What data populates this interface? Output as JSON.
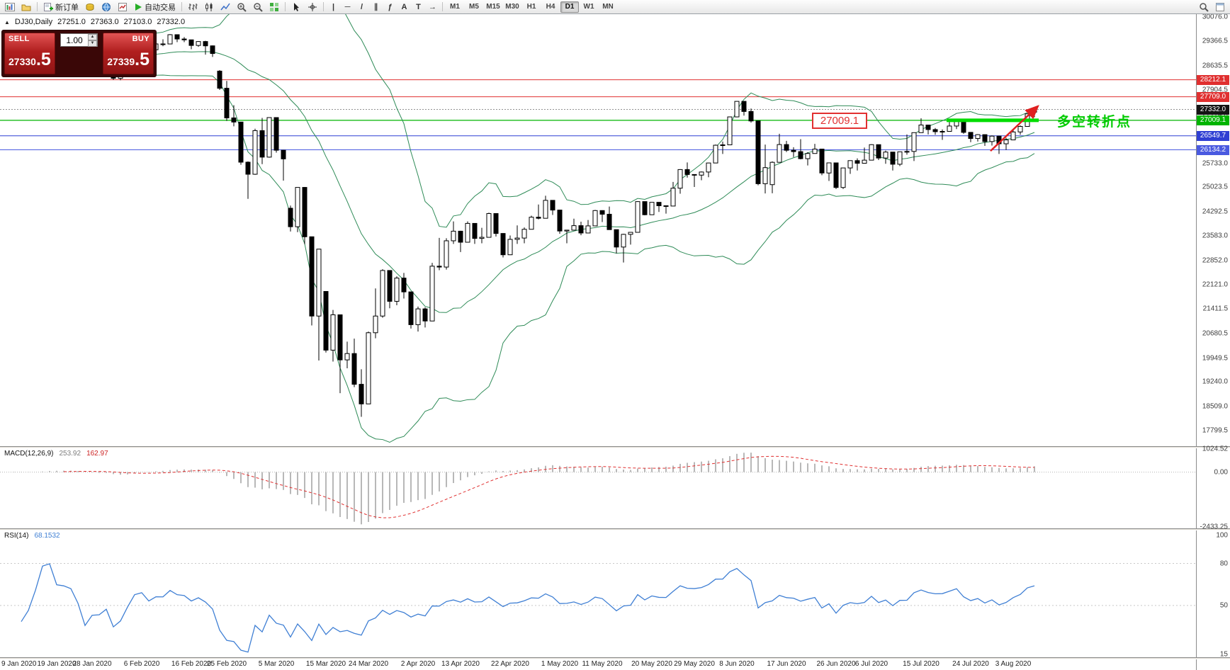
{
  "toolbar": {
    "new_order_label": "新订单",
    "autotrading_label": "自动交易",
    "timeframes": [
      "M1",
      "M5",
      "M15",
      "M30",
      "H1",
      "H4",
      "D1",
      "W1",
      "MN"
    ],
    "active_timeframe": "D1",
    "drawing_tools": [
      "|",
      "─",
      "/",
      "∥",
      "ƒ",
      "A",
      "T",
      "→"
    ]
  },
  "symbol_bar": {
    "toggle_icon": "▲",
    "symbol": "DJ30,Daily",
    "open": "27251.0",
    "high": "27363.0",
    "low": "27103.0",
    "close": "27332.0"
  },
  "trade_widget": {
    "sell_label": "SELL",
    "buy_label": "BUY",
    "volume": "1.00",
    "spin_up": "▲",
    "spin_down": "▼",
    "sell_price_main": "27330",
    "sell_price_pip": ".5",
    "buy_price_main": "27339",
    "buy_price_pip": ".5"
  },
  "annotations": {
    "level_callout": "27009.1",
    "turning_point": "多空转折点"
  },
  "indicator_titles": {
    "macd_label": "MACD(12,26,9)",
    "macd_main": "253.92",
    "macd_signal": "162.97",
    "rsi_label": "RSI(14)",
    "rsi_value": "68.1532"
  },
  "price_axis": {
    "ticks": [
      "30076.0",
      "29366.5",
      "28635.5",
      "27904.5",
      "27174.0",
      "26463.0",
      "25733.0",
      "25023.5",
      "24292.5",
      "23583.0",
      "22852.0",
      "22121.0",
      "21411.5",
      "20680.5",
      "19949.5",
      "19240.0",
      "18509.0",
      "17799.5"
    ],
    "badges": [
      {
        "value": "28212.1",
        "price": 28212.1,
        "color": "#e03030"
      },
      {
        "value": "27709.0",
        "price": 27709.0,
        "color": "#e03030"
      },
      {
        "value": "27332.0",
        "price": 27332.0,
        "color": "#141414"
      },
      {
        "value": "27009.1",
        "price": 27009.1,
        "color": "#00b400"
      },
      {
        "value": "26549.7",
        "price": 26549.7,
        "color": "#2f3fd3"
      },
      {
        "value": "26134.2",
        "price": 26134.2,
        "color": "#4a5ae0"
      }
    ]
  },
  "chart_data": {
    "type": "candlestick",
    "symbol": "DJ30",
    "timeframe": "Daily",
    "ylim": {
      "top": 30076.0,
      "bottom": 17799.5
    },
    "hlines": [
      {
        "price": 28212.1,
        "color": "#e03030",
        "width": 1,
        "style": "solid"
      },
      {
        "price": 27709.0,
        "color": "#e03030",
        "width": 1,
        "style": "solid"
      },
      {
        "price": 27332.0,
        "color": "#909090",
        "width": 1,
        "style": "dotted"
      },
      {
        "price": 27009.1,
        "color": "#00b400",
        "width": 1.2,
        "style": "solid"
      },
      {
        "price": 26549.7,
        "color": "#2f3fd3",
        "width": 1,
        "style": "solid"
      },
      {
        "price": 26134.2,
        "color": "#4a5ae0",
        "width": 1,
        "style": "solid"
      }
    ],
    "objects": {
      "thick_segment": {
        "price": 27009.1,
        "from_index": 133,
        "to_index": 145,
        "color": "#00dd00",
        "width": 5
      },
      "arrow": {
        "from": {
          "index": 139,
          "price": 26100
        },
        "to": {
          "index": 145,
          "price": 27430
        },
        "color": "#e02020"
      }
    },
    "indicators": {
      "bollinger": {
        "period": 20,
        "deviation": 2,
        "color": "#2e8b57"
      },
      "macd": {
        "fast": 12,
        "slow": 26,
        "signal": 9,
        "hist_color": "#b8b8b8",
        "signal_color": "#e03030",
        "ylim": {
          "max": 1024.52,
          "min": -2433.25
        },
        "axis_labels": [
          {
            "value": 1024.52,
            "label": "1024.52"
          },
          {
            "value": 0,
            "label": "0.00"
          },
          {
            "value": -2433.25,
            "label": "-2433.25"
          }
        ]
      },
      "rsi": {
        "period": 14,
        "color": "#3f7fd4",
        "ylim": {
          "max": 100,
          "min": 15
        },
        "levels": [
          80,
          50
        ],
        "axis_labels": [
          {
            "value": 100,
            "label": "100"
          },
          {
            "value": 80,
            "label": "80"
          },
          {
            "value": 50,
            "label": "50"
          },
          {
            "value": 15,
            "label": "15"
          }
        ]
      }
    },
    "date_labels": [
      {
        "label": "9 Jan 2020",
        "index": 0
      },
      {
        "label": "19 Jan 2020",
        "index": 7
      },
      {
        "label": "28 Jan 2020",
        "index": 12
      },
      {
        "label": "6 Feb 2020",
        "index": 19
      },
      {
        "label": "16 Feb 2020",
        "index": 26
      },
      {
        "label": "25 Feb 2020",
        "index": 31
      },
      {
        "label": "5 Mar 2020",
        "index": 38
      },
      {
        "label": "15 Mar 2020",
        "index": 45
      },
      {
        "label": "24 Mar 2020",
        "index": 51
      },
      {
        "label": "2 Apr 2020",
        "index": 58
      },
      {
        "label": "13 Apr 2020",
        "index": 64
      },
      {
        "label": "22 Apr 2020",
        "index": 71
      },
      {
        "label": "1 May 2020",
        "index": 78
      },
      {
        "label": "11 May 2020",
        "index": 84
      },
      {
        "label": "20 May 2020",
        "index": 91
      },
      {
        "label": "29 May 2020",
        "index": 97
      },
      {
        "label": "8 Jun 2020",
        "index": 103
      },
      {
        "label": "17 Jun 2020",
        "index": 110
      },
      {
        "label": "26 Jun 2020",
        "index": 117
      },
      {
        "label": "6 Jul 2020",
        "index": 122
      },
      {
        "label": "15 Jul 2020",
        "index": 129
      },
      {
        "label": "24 Jul 2020",
        "index": 136
      },
      {
        "label": "3 Aug 2020",
        "index": 142
      }
    ],
    "ohlc": [
      [
        28852,
        29010,
        28780,
        28957
      ],
      [
        28957,
        29000,
        28740,
        28824
      ],
      [
        28824,
        28915,
        28770,
        28907
      ],
      [
        28907,
        28995,
        28830,
        28939
      ],
      [
        28939,
        29060,
        28860,
        29030
      ],
      [
        29030,
        29320,
        29000,
        29298
      ],
      [
        29298,
        29380,
        29250,
        29348
      ],
      [
        29348,
        29370,
        29120,
        29196
      ],
      [
        29196,
        29280,
        29110,
        29186
      ],
      [
        29186,
        29230,
        28970,
        29160
      ],
      [
        29160,
        29230,
        28820,
        28990
      ],
      [
        28700,
        28750,
        28440,
        28536
      ],
      [
        28536,
        28780,
        28500,
        28723
      ],
      [
        28723,
        28850,
        28630,
        28734
      ],
      [
        28734,
        28890,
        28520,
        28859
      ],
      [
        28859,
        28870,
        28210,
        28256
      ],
      [
        28256,
        28490,
        28200,
        28400
      ],
      [
        28400,
        28850,
        28390,
        28808
      ],
      [
        28808,
        29310,
        28800,
        29291
      ],
      [
        29291,
        29410,
        29210,
        29380
      ],
      [
        29380,
        29390,
        29050,
        29103
      ],
      [
        29103,
        29290,
        29050,
        29277
      ],
      [
        29277,
        29415,
        29210,
        29276
      ],
      [
        29276,
        29568,
        29270,
        29551
      ],
      [
        29551,
        29560,
        29330,
        29423
      ],
      [
        29423,
        29480,
        29330,
        29398
      ],
      [
        29398,
        29400,
        29120,
        29232
      ],
      [
        29232,
        29360,
        29190,
        29348
      ],
      [
        29348,
        29369,
        28960,
        29220
      ],
      [
        29220,
        29230,
        28890,
        28992
      ],
      [
        28470,
        28500,
        27910,
        27961
      ],
      [
        27961,
        28180,
        26990,
        27081
      ],
      [
        27081,
        27460,
        26830,
        26958
      ],
      [
        26958,
        26960,
        25690,
        25767
      ],
      [
        25767,
        25790,
        24680,
        25409
      ],
      [
        25409,
        26760,
        25390,
        26703
      ],
      [
        26703,
        27080,
        25710,
        25917
      ],
      [
        25917,
        27100,
        25900,
        27091
      ],
      [
        27091,
        27095,
        26050,
        26121
      ],
      [
        26121,
        26130,
        25220,
        25865
      ],
      [
        24400,
        24480,
        23710,
        23851
      ],
      [
        23851,
        25020,
        23690,
        25018
      ],
      [
        25018,
        25030,
        23330,
        23553
      ],
      [
        23553,
        23560,
        20920,
        21200
      ],
      [
        21200,
        23190,
        19880,
        23186
      ],
      [
        21930,
        21940,
        20116,
        20188
      ],
      [
        20188,
        21380,
        19850,
        21237
      ],
      [
        21237,
        21240,
        18910,
        19899
      ],
      [
        19899,
        20440,
        19650,
        20087
      ],
      [
        20087,
        20530,
        19090,
        19174
      ],
      [
        19174,
        19620,
        18210,
        18592
      ],
      [
        18592,
        20740,
        18590,
        20705
      ],
      [
        20705,
        22020,
        20540,
        21200
      ],
      [
        21200,
        22590,
        21150,
        22552
      ],
      [
        22552,
        22560,
        21430,
        21637
      ],
      [
        21637,
        22380,
        21520,
        22327
      ],
      [
        22327,
        22480,
        21720,
        21917
      ],
      [
        21917,
        21920,
        20830,
        20944
      ],
      [
        20944,
        21480,
        20740,
        21413
      ],
      [
        21413,
        21460,
        20860,
        21053
      ],
      [
        21053,
        22780,
        21050,
        22680
      ],
      [
        22680,
        23520,
        22560,
        22654
      ],
      [
        22654,
        23510,
        22580,
        23434
      ],
      [
        23434,
        24010,
        23340,
        23719
      ],
      [
        23719,
        23730,
        23100,
        23391
      ],
      [
        23391,
        24010,
        23390,
        23950
      ],
      [
        23950,
        23960,
        23340,
        23504
      ],
      [
        23504,
        23820,
        23360,
        23537
      ],
      [
        23537,
        24270,
        23530,
        24242
      ],
      [
        24242,
        24250,
        23560,
        23651
      ],
      [
        23651,
        23660,
        22940,
        23019
      ],
      [
        23019,
        23590,
        23010,
        23476
      ],
      [
        23476,
        23890,
        23340,
        23515
      ],
      [
        23515,
        23830,
        23360,
        23775
      ],
      [
        23775,
        24180,
        23770,
        24134
      ],
      [
        24134,
        24510,
        24070,
        24102
      ],
      [
        24102,
        24770,
        24100,
        24634
      ],
      [
        24634,
        24640,
        24200,
        24346
      ],
      [
        24346,
        24350,
        23640,
        23724
      ],
      [
        23724,
        23760,
        23360,
        23750
      ],
      [
        23750,
        24090,
        23740,
        23883
      ],
      [
        23883,
        24000,
        23600,
        23665
      ],
      [
        23665,
        24050,
        23660,
        23876
      ],
      [
        23876,
        24350,
        23870,
        24331
      ],
      [
        24331,
        24340,
        23990,
        24222
      ],
      [
        24222,
        24450,
        23760,
        23765
      ],
      [
        23765,
        23770,
        23060,
        23248
      ],
      [
        23248,
        23640,
        22790,
        23625
      ],
      [
        23625,
        23690,
        23320,
        23685
      ],
      [
        23685,
        24610,
        23680,
        24597
      ],
      [
        24597,
        24600,
        24190,
        24207
      ],
      [
        24207,
        24580,
        24200,
        24576
      ],
      [
        24576,
        24580,
        24290,
        24474
      ],
      [
        24474,
        24480,
        24240,
        24465
      ],
      [
        24465,
        25180,
        24460,
        24995
      ],
      [
        24995,
        25560,
        24830,
        25548
      ],
      [
        25548,
        25760,
        25310,
        25401
      ],
      [
        25401,
        25410,
        25030,
        25383
      ],
      [
        25383,
        25490,
        25230,
        25475
      ],
      [
        25475,
        25750,
        25320,
        25743
      ],
      [
        25743,
        26290,
        25740,
        26270
      ],
      [
        26270,
        26380,
        26010,
        26282
      ],
      [
        26282,
        27120,
        26280,
        27111
      ],
      [
        27111,
        27580,
        27100,
        27572
      ],
      [
        27572,
        27580,
        27150,
        27272
      ],
      [
        27272,
        27360,
        26940,
        26990
      ],
      [
        26990,
        26995,
        25080,
        25128
      ],
      [
        25128,
        26290,
        24840,
        25605
      ],
      [
        25100,
        25790,
        24845,
        25763
      ],
      [
        25763,
        26610,
        25760,
        26290
      ],
      [
        26290,
        26400,
        26070,
        26120
      ],
      [
        26120,
        26210,
        25920,
        26080
      ],
      [
        26080,
        26450,
        25850,
        25871
      ],
      [
        25871,
        26060,
        25670,
        26025
      ],
      [
        26025,
        26310,
        26020,
        26156
      ],
      [
        26156,
        26160,
        25380,
        25446
      ],
      [
        25446,
        25750,
        25210,
        25746
      ],
      [
        25746,
        25750,
        24970,
        25016
      ],
      [
        25016,
        25600,
        24970,
        25596
      ],
      [
        25596,
        25820,
        25420,
        25813
      ],
      [
        25813,
        25880,
        25520,
        25735
      ],
      [
        25735,
        26200,
        25730,
        25827
      ],
      [
        25827,
        26300,
        25820,
        26287
      ],
      [
        26287,
        26290,
        25830,
        25890
      ],
      [
        25890,
        26110,
        25720,
        26067
      ],
      [
        26067,
        26070,
        25520,
        25706
      ],
      [
        25706,
        26080,
        25650,
        26075
      ],
      [
        26075,
        26590,
        25990,
        26086
      ],
      [
        26086,
        26650,
        25800,
        26643
      ],
      [
        26643,
        27070,
        26640,
        26870
      ],
      [
        26870,
        26880,
        26590,
        26735
      ],
      [
        26735,
        26780,
        26580,
        26672
      ],
      [
        26672,
        26740,
        26430,
        26681
      ],
      [
        26681,
        27010,
        26680,
        26840
      ],
      [
        26840,
        27040,
        26750,
        27006
      ],
      [
        27006,
        27010,
        26610,
        26652
      ],
      [
        26652,
        26660,
        26360,
        26470
      ],
      [
        26470,
        26600,
        26380,
        26584
      ],
      [
        26584,
        26590,
        26250,
        26379
      ],
      [
        26379,
        26560,
        26260,
        26540
      ],
      [
        26540,
        26550,
        26010,
        26313
      ],
      [
        26313,
        26490,
        26130,
        26428
      ],
      [
        26428,
        26720,
        26420,
        26664
      ],
      [
        26664,
        26860,
        26580,
        26828
      ],
      [
        26828,
        27210,
        26820,
        27202
      ],
      [
        27251,
        27363,
        27103,
        27332
      ]
    ]
  }
}
